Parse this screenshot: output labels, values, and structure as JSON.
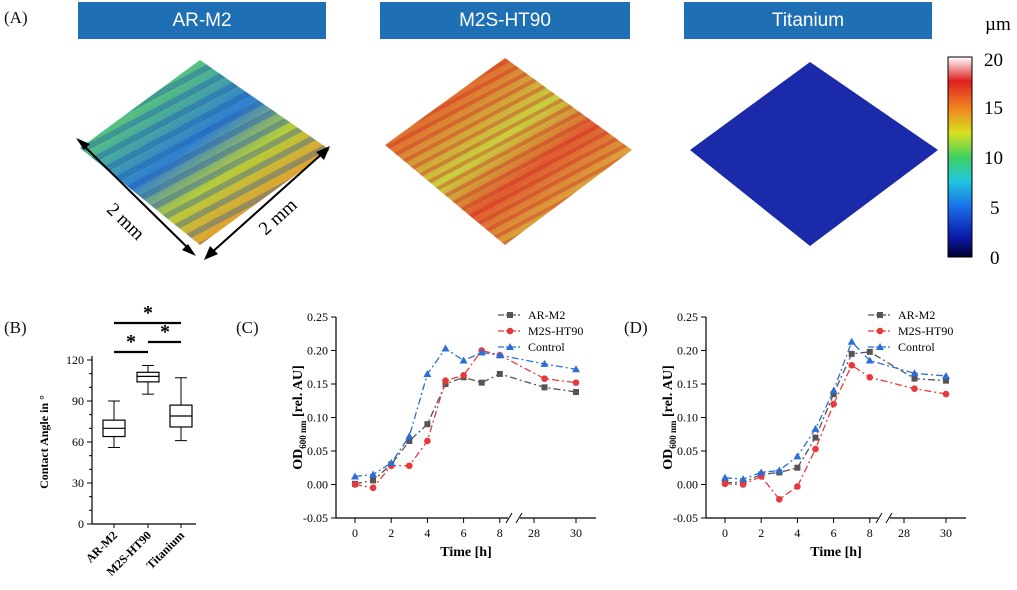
{
  "panel_a": {
    "label": "(A)",
    "headers": [
      "AR-M2",
      "M2S-HT90",
      "Titanium"
    ],
    "dim_label_left": "2 mm",
    "dim_label_right": "2 mm",
    "colorbar": {
      "unit": "µm",
      "ticks": [
        "20",
        "15",
        "10",
        "5",
        "0"
      ]
    }
  },
  "chart_data": [
    {
      "panel": "(B)",
      "type": "box",
      "ylabel": "Contact Angle in °",
      "ylim": [
        0,
        120
      ],
      "yticks": [
        "0",
        "30",
        "60",
        "90",
        "120"
      ],
      "categories": [
        "AR-M2",
        "M2S-HT90",
        "Titanium"
      ],
      "boxes": [
        {
          "name": "AR-M2",
          "min": 56,
          "q1": 64,
          "median": 70,
          "q3": 76,
          "max": 90
        },
        {
          "name": "M2S-HT90",
          "min": 95,
          "q1": 104,
          "median": 108,
          "q3": 111,
          "max": 116
        },
        {
          "name": "Titanium",
          "min": 61,
          "q1": 71,
          "median": 79,
          "q3": 87,
          "max": 107
        }
      ],
      "significance": [
        "*",
        "*",
        "*"
      ]
    },
    {
      "panel": "(C)",
      "type": "line",
      "xlabel": "Time [h]",
      "ylabel_main": "OD",
      "ylabel_sub": "600 nm",
      "ylabel_unit": "[rel. AU]",
      "xticks": [
        "0",
        "2",
        "4",
        "6",
        "8",
        "28",
        "30"
      ],
      "yticks": [
        "-0.05",
        "0.00",
        "0.05",
        "0.10",
        "0.15",
        "0.20",
        "0.25"
      ],
      "ylim": [
        -0.05,
        0.25
      ],
      "x": [
        0,
        1,
        2,
        3,
        4,
        5,
        6,
        7,
        8,
        28.5,
        30
      ],
      "series": [
        {
          "name": "AR-M2",
          "color": "#555555",
          "marker": "square",
          "values": [
            0.001,
            0.006,
            0.03,
            0.065,
            0.09,
            0.15,
            0.16,
            0.152,
            0.165,
            0.145,
            0.138
          ]
        },
        {
          "name": "M2S-HT90",
          "color": "#e8383d",
          "marker": "circle",
          "values": [
            0.0,
            -0.005,
            0.028,
            0.028,
            0.065,
            0.155,
            0.163,
            0.2,
            0.193,
            0.158,
            0.152
          ]
        },
        {
          "name": "Control",
          "color": "#2b6fd6",
          "marker": "triangle",
          "values": [
            0.012,
            0.015,
            0.032,
            0.072,
            0.165,
            0.203,
            0.185,
            0.197,
            0.193,
            0.18,
            0.172
          ]
        }
      ]
    },
    {
      "panel": "(D)",
      "type": "line",
      "xlabel": "Time [h]",
      "ylabel_main": "OD",
      "ylabel_sub": "600 nm",
      "ylabel_unit": "[rel. AU]",
      "xticks": [
        "0",
        "2",
        "4",
        "6",
        "8",
        "28",
        "30"
      ],
      "yticks": [
        "-0.05",
        "0.00",
        "0.05",
        "0.10",
        "0.15",
        "0.20",
        "0.25"
      ],
      "ylim": [
        -0.05,
        0.25
      ],
      "x": [
        0,
        1,
        2,
        3,
        4,
        5,
        6,
        7,
        8,
        28.5,
        30
      ],
      "series": [
        {
          "name": "AR-M2",
          "color": "#555555",
          "marker": "square",
          "values": [
            0.003,
            0.003,
            0.015,
            0.018,
            0.025,
            0.07,
            0.135,
            0.195,
            0.198,
            0.158,
            0.155
          ]
        },
        {
          "name": "M2S-HT90",
          "color": "#e8383d",
          "marker": "circle",
          "values": [
            0.001,
            0.0,
            0.012,
            -0.022,
            -0.003,
            0.053,
            0.12,
            0.178,
            0.16,
            0.143,
            0.135
          ]
        },
        {
          "name": "Control",
          "color": "#2b6fd6",
          "marker": "triangle",
          "values": [
            0.01,
            0.008,
            0.018,
            0.021,
            0.042,
            0.083,
            0.14,
            0.213,
            0.185,
            0.166,
            0.162
          ]
        }
      ]
    }
  ]
}
